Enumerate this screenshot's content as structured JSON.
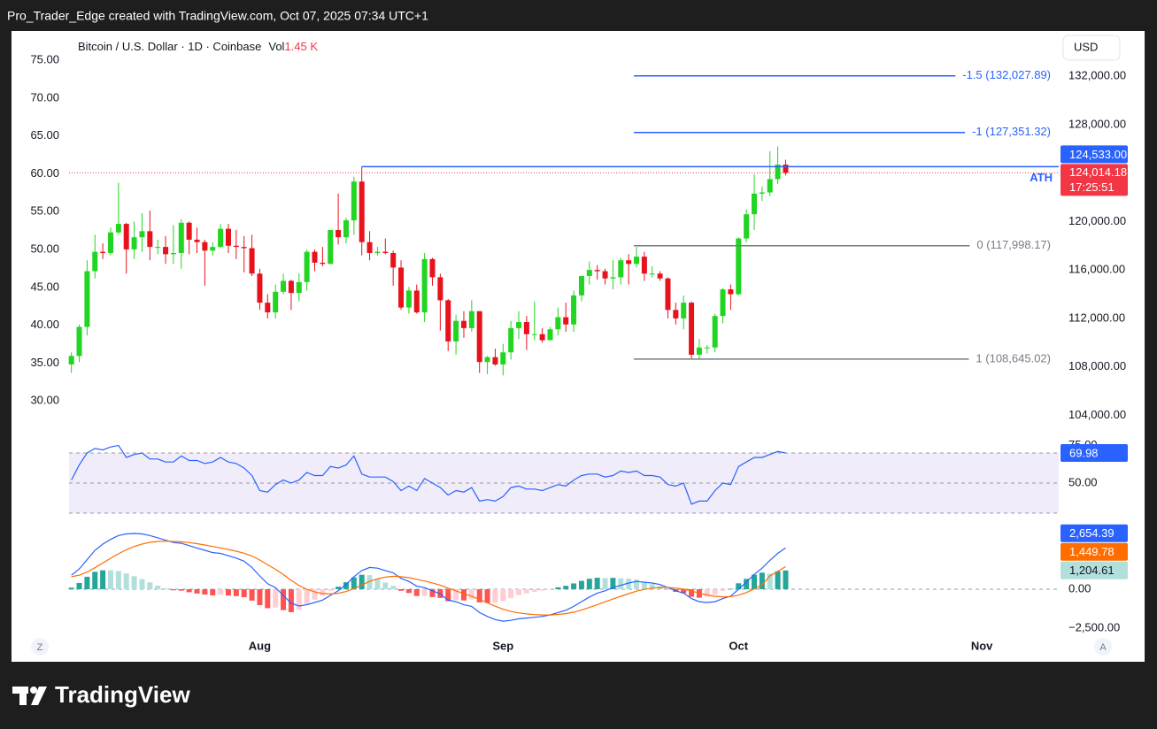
{
  "header": {
    "caption": "Pro_Trader_Edge created with TradingView.com, Oct 07, 2025 07:34 UTC+1"
  },
  "footer": {
    "brand": "TradingView"
  },
  "chart_data": [
    {
      "type": "candlestick",
      "title": "Bitcoin / U.S. Dollar · 1D · Coinbase",
      "volume_label": "Vol",
      "volume_value": "1.45 K",
      "currency": "USD",
      "up_color": "#22d522",
      "down_color": "#e8121c",
      "grid": false,
      "xlim": [
        -0.3,
        125.8
      ],
      "xticks": [
        {
          "value": 24,
          "label": "Aug"
        },
        {
          "value": 55,
          "label": "Sep"
        },
        {
          "value": 85,
          "label": "Oct"
        },
        {
          "value": 116,
          "label": "Nov"
        }
      ],
      "ylim": [
        102500,
        135000
      ],
      "yticks": [
        {
          "value": 104000,
          "label": "104,000.00"
        },
        {
          "value": 108000,
          "label": "108,000.00"
        },
        {
          "value": 112000,
          "label": "112,000.00"
        },
        {
          "value": 116000,
          "label": "116,000.00"
        },
        {
          "value": 120000,
          "label": "120,000.00"
        },
        {
          "value": 124000,
          "label": "124,000.00"
        },
        {
          "value": 128000,
          "label": "128,000.00"
        },
        {
          "value": 132000,
          "label": "132,000.00"
        }
      ],
      "y2lim": [
        25.7,
        77.7
      ],
      "y2ticks": [
        {
          "value": 30,
          "label": "30.00"
        },
        {
          "value": 35,
          "label": "35.00"
        },
        {
          "value": 40,
          "label": "40.00"
        },
        {
          "value": 45,
          "label": "45.00"
        },
        {
          "value": 50,
          "label": "50.00"
        },
        {
          "value": 55,
          "label": "55.00"
        },
        {
          "value": 60,
          "label": "60.00"
        },
        {
          "value": 65,
          "label": "65.00"
        },
        {
          "value": 70,
          "label": "70.00"
        },
        {
          "value": 75,
          "label": "75.00"
        }
      ],
      "open": [
        108200,
        108900,
        111300,
        115900,
        117500,
        117400,
        119100,
        119800,
        117700,
        118700,
        119200,
        117900,
        117900,
        117300,
        117400,
        119900,
        118500,
        118300,
        117600,
        117900,
        119400,
        118000,
        117900,
        117800,
        115700,
        113300,
        112500,
        114200,
        115100,
        114100,
        115000,
        117500,
        116600,
        116500,
        119300,
        118700,
        120100,
        123300,
        118300,
        117400,
        117500,
        117400,
        116200,
        112900,
        114300,
        112500,
        116900,
        115400,
        113500,
        110100,
        111800,
        111200,
        112600,
        108400,
        108800,
        108200,
        109200,
        111200,
        111700,
        110700,
        110700,
        110200,
        111100,
        112100,
        111500,
        113900,
        115500,
        116000,
        115900,
        115300,
        115400,
        116800,
        116500,
        117100,
        115700,
        115700,
        115300,
        112700,
        112000,
        113300,
        109000,
        109600,
        109600,
        112200,
        114400,
        114000,
        118600,
        120600,
        122300,
        122400,
        123500,
        124700
      ],
      "high": [
        109200,
        111500,
        116800,
        118900,
        118200,
        119500,
        123200,
        119900,
        120000,
        120700,
        120900,
        118500,
        118800,
        119700,
        120200,
        120000,
        119500,
        118500,
        118300,
        119800,
        119800,
        119300,
        118800,
        118900,
        116100,
        114000,
        114800,
        115700,
        115200,
        115700,
        117700,
        117700,
        117900,
        119300,
        122300,
        120300,
        123700,
        124533,
        119200,
        117900,
        118600,
        117600,
        116800,
        114600,
        114800,
        117400,
        117000,
        115700,
        113600,
        112300,
        112600,
        113500,
        112600,
        108900,
        109500,
        109900,
        111800,
        112600,
        112200,
        113400,
        111200,
        111300,
        112900,
        113300,
        114300,
        115500,
        116700,
        116400,
        116100,
        116800,
        117000,
        117300,
        117900,
        117500,
        116300,
        115900,
        115400,
        113300,
        113900,
        113400,
        110300,
        109800,
        112400,
        114500,
        114800,
        118700,
        121000,
        123900,
        122900,
        125800,
        126200,
        125100
      ],
      "low": [
        107500,
        108400,
        110600,
        115300,
        116900,
        117200,
        118900,
        115700,
        116900,
        117500,
        116800,
        117300,
        116500,
        116500,
        116100,
        117300,
        117400,
        114700,
        117200,
        117800,
        117400,
        116900,
        115800,
        115500,
        112700,
        112000,
        112000,
        114000,
        112700,
        113400,
        114300,
        115900,
        116300,
        116500,
        118100,
        118200,
        118900,
        117200,
        116800,
        117200,
        117300,
        114700,
        112700,
        112400,
        112400,
        111700,
        114700,
        111000,
        109300,
        109000,
        110400,
        110900,
        107500,
        107400,
        108100,
        107300,
        108600,
        110300,
        109400,
        110200,
        110000,
        110200,
        110600,
        110900,
        110900,
        113400,
        114800,
        115200,
        114800,
        114400,
        114800,
        114800,
        116200,
        115100,
        115400,
        115100,
        112000,
        111500,
        111100,
        108700,
        108645,
        109100,
        109200,
        111600,
        112700,
        113900,
        118300,
        119300,
        121700,
        122100,
        123100,
        123800
      ],
      "close": [
        108900,
        111300,
        115900,
        117500,
        117400,
        119100,
        119800,
        117700,
        118700,
        119200,
        117900,
        117900,
        117300,
        117400,
        119900,
        118500,
        118300,
        117600,
        117900,
        119400,
        118000,
        117900,
        117800,
        115700,
        113300,
        112500,
        114200,
        115100,
        114100,
        115000,
        117500,
        116600,
        116500,
        119300,
        118700,
        120100,
        123300,
        118300,
        117400,
        117500,
        117400,
        116200,
        112900,
        114300,
        112500,
        116900,
        115400,
        113500,
        110100,
        111800,
        111200,
        112600,
        108400,
        108800,
        108200,
        109200,
        111200,
        111700,
        110700,
        110700,
        110200,
        111100,
        112100,
        111500,
        113900,
        115500,
        116000,
        115900,
        115300,
        115400,
        116800,
        116500,
        117100,
        115700,
        115700,
        115300,
        112700,
        112000,
        113300,
        109000,
        109600,
        109600,
        112200,
        114400,
        114000,
        118600,
        120600,
        122300,
        122400,
        123500,
        124700,
        124014.18
      ],
      "close_label": "124,014.18",
      "countdown": "17:25:51",
      "lines": [
        {
          "label": "ATH",
          "value": 124533,
          "value_label": "124,533.00",
          "color": "#2962ff"
        },
        {
          "label": "-1.5 (132,027.89)",
          "value": 132027.89,
          "color": "#2962ff"
        },
        {
          "label": "-1 (127,351.32)",
          "value": 127351.32,
          "color": "#2962ff"
        },
        {
          "label": "0 (117,998.17)",
          "value": 117998.17,
          "color": "#787b86"
        },
        {
          "label": "1 (108,645.02)",
          "value": 108645.02,
          "color": "#787b86"
        }
      ]
    },
    {
      "type": "rsi",
      "grid": false,
      "ylim": [
        25.3,
        78.8
      ],
      "yticks": [
        {
          "value": 50,
          "label": "50.00"
        },
        {
          "value": 75,
          "label": "75.00"
        }
      ],
      "levels": [
        70,
        50,
        30
      ],
      "band_color": "#f0ecfa",
      "series": [
        {
          "color": "#2962ff",
          "values": [
            52,
            62,
            70,
            73,
            72,
            74,
            75,
            67,
            69,
            70,
            66,
            66,
            64,
            64,
            68,
            65,
            65,
            63,
            64,
            67,
            64,
            63,
            60,
            55,
            45,
            44,
            49,
            52,
            50,
            52,
            57,
            55,
            55,
            61,
            60,
            62,
            68,
            56,
            54,
            54,
            54,
            51,
            45,
            48,
            45,
            53,
            50,
            47,
            42,
            45,
            44,
            47,
            38,
            39,
            38,
            41,
            47,
            48,
            46,
            46,
            45,
            47,
            49,
            48,
            52,
            55,
            56,
            56,
            54,
            55,
            58,
            57,
            58,
            55,
            55,
            54,
            49,
            48,
            50,
            36,
            38,
            38,
            45,
            50,
            49,
            61,
            64,
            67,
            67,
            69,
            71,
            69.98
          ]
        }
      ]
    },
    {
      "type": "macd",
      "grid": false,
      "ylim": [
        -2784,
        4205
      ],
      "yticks": [
        {
          "value": -2500,
          "label": "−2,500.00"
        },
        {
          "value": 0,
          "label": "0.00"
        }
      ],
      "series": [
        {
          "color": "#2962ff",
          "last_label": "2,654.39",
          "values": [
            900,
            1300,
            1900,
            2500,
            2900,
            3200,
            3450,
            3550,
            3580,
            3550,
            3450,
            3300,
            3150,
            3000,
            2950,
            2800,
            2650,
            2500,
            2350,
            2300,
            2150,
            2000,
            1800,
            1400,
            850,
            350,
            100,
            -400,
            -900,
            -1080,
            -1000,
            -850,
            -700,
            -400,
            -100,
            300,
            800,
            1200,
            1400,
            1350,
            1200,
            1050,
            700,
            500,
            200,
            100,
            -100,
            -300,
            -700,
            -800,
            -1000,
            -1100,
            -1500,
            -1750,
            -1950,
            -2050,
            -2000,
            -1900,
            -1850,
            -1800,
            -1750,
            -1650,
            -1500,
            -1350,
            -1100,
            -800,
            -500,
            -250,
            -100,
            100,
            250,
            400,
            500,
            450,
            400,
            300,
            100,
            -100,
            -250,
            -600,
            -800,
            -850,
            -800,
            -600,
            -450,
            0,
            450,
            950,
            1350,
            1850,
            2300,
            2654.39
          ]
        },
        {
          "color": "#ff6d00",
          "last_label": "1,449.78",
          "values": [
            800,
            900,
            1100,
            1380,
            1684,
            1987,
            2280,
            2534,
            2743,
            2904,
            3013,
            3070,
            3086,
            3069,
            3045,
            2996,
            2927,
            2842,
            2744,
            2655,
            2554,
            2443,
            2314,
            2131,
            1875,
            1570,
            1276,
            941,
            573,
            242,
            -6,
            -175,
            -280,
            -304,
            -263,
            -150,
            40,
            272,
            498,
            668,
            774,
            829,
            803,
            742,
            634,
            527,
            402,
            262,
            70,
            -104,
            -283,
            -446,
            -657,
            -876,
            -1091,
            -1283,
            -1426,
            -1521,
            -1587,
            -1630,
            -1654,
            -1653,
            -1622,
            -1568,
            -1474,
            -1339,
            -1171,
            -987,
            -810,
            -628,
            -452,
            -282,
            -126,
            -11,
            71,
            117,
            114,
            71,
            7,
            -114,
            -251,
            -371,
            -457,
            -486,
            -479,
            -383,
            -216,
            17,
            284,
            850,
            1150,
            1449.78
          ]
        }
      ],
      "histogram": {
        "colors": [
          "#26a69a",
          "#b2dfdb",
          "#ffcdd2",
          "#ff5252"
        ],
        "last_label": "1,204.61",
        "values": [
          100,
          400,
          800,
          1120,
          1216,
          1213,
          1170,
          1016,
          837,
          646,
          437,
          230,
          64,
          -69,
          -95,
          -196,
          -277,
          -342,
          -394,
          -355,
          -404,
          -443,
          -514,
          -731,
          -1025,
          -1220,
          -1176,
          -1341,
          -1473,
          -1322,
          -994,
          -675,
          -420,
          -96,
          163,
          450,
          760,
          928,
          902,
          682,
          426,
          221,
          -103,
          -242,
          -434,
          -427,
          -502,
          -562,
          -770,
          -696,
          -717,
          -654,
          -843,
          -874,
          -859,
          -767,
          -574,
          -379,
          -263,
          -170,
          -96,
          3,
          122,
          218,
          374,
          539,
          671,
          737,
          710,
          728,
          702,
          682,
          626,
          461,
          329,
          183,
          -14,
          -171,
          -257,
          -486,
          -549,
          -479,
          -343,
          -114,
          29,
          383,
          666,
          933,
          1066,
          1000,
          1150,
          1204.61
        ]
      }
    }
  ]
}
